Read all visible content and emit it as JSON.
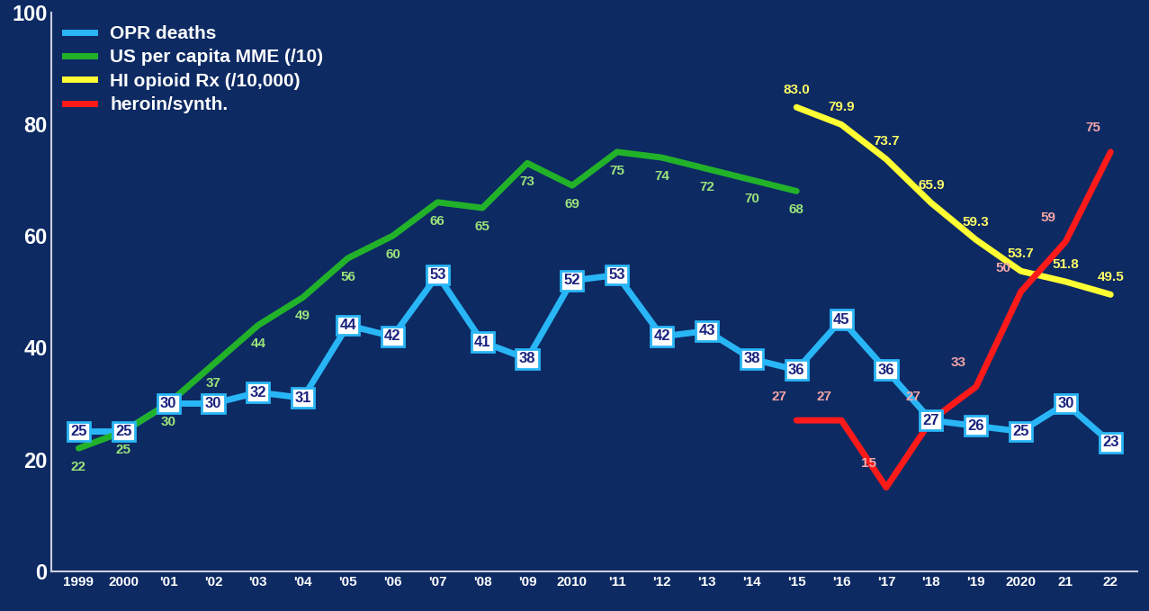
{
  "chart_data": {
    "type": "line",
    "categories": [
      "1999",
      "2000",
      "'01",
      "'02",
      "'03",
      "'04",
      "'05",
      "'06",
      "'07",
      "'08",
      "'09",
      "2010",
      "'11",
      "'12",
      "'13",
      "'14",
      "'15",
      "'16",
      "'17",
      "'18",
      "'19",
      "2020",
      "21",
      "22"
    ],
    "series": [
      {
        "name": "OPR deaths",
        "color": "#29b6f6",
        "values": [
          25,
          25,
          30,
          30,
          32,
          31,
          44,
          42,
          53,
          41,
          38,
          52,
          53,
          42,
          43,
          38,
          36,
          45,
          36,
          27,
          26,
          25,
          30,
          23
        ]
      },
      {
        "name": "US per capita MME (/10)",
        "color": "#22b22a",
        "values": [
          22,
          25,
          30,
          37,
          44,
          49,
          56,
          60,
          66,
          65,
          73,
          69,
          75,
          74,
          72,
          70,
          68,
          null,
          null,
          null,
          null,
          null,
          null,
          null
        ]
      },
      {
        "name": "HI opioid Rx (/10,000)",
        "color": "#ffff33",
        "values": [
          null,
          null,
          null,
          null,
          null,
          null,
          null,
          null,
          null,
          null,
          null,
          null,
          null,
          null,
          null,
          null,
          83.0,
          79.9,
          73.7,
          65.9,
          59.3,
          53.7,
          51.8,
          49.5
        ]
      },
      {
        "name": "heroin/synth.",
        "color": "#ff1a1a",
        "values": [
          null,
          null,
          null,
          null,
          null,
          null,
          null,
          null,
          null,
          null,
          null,
          null,
          null,
          null,
          null,
          null,
          27,
          27,
          15,
          27,
          33,
          50,
          59,
          75
        ]
      }
    ],
    "ylim": [
      0,
      100
    ],
    "yticks": [
      0,
      20,
      40,
      60,
      80,
      100
    ],
    "grid": false,
    "legend": "upper left",
    "data_labels": true
  }
}
